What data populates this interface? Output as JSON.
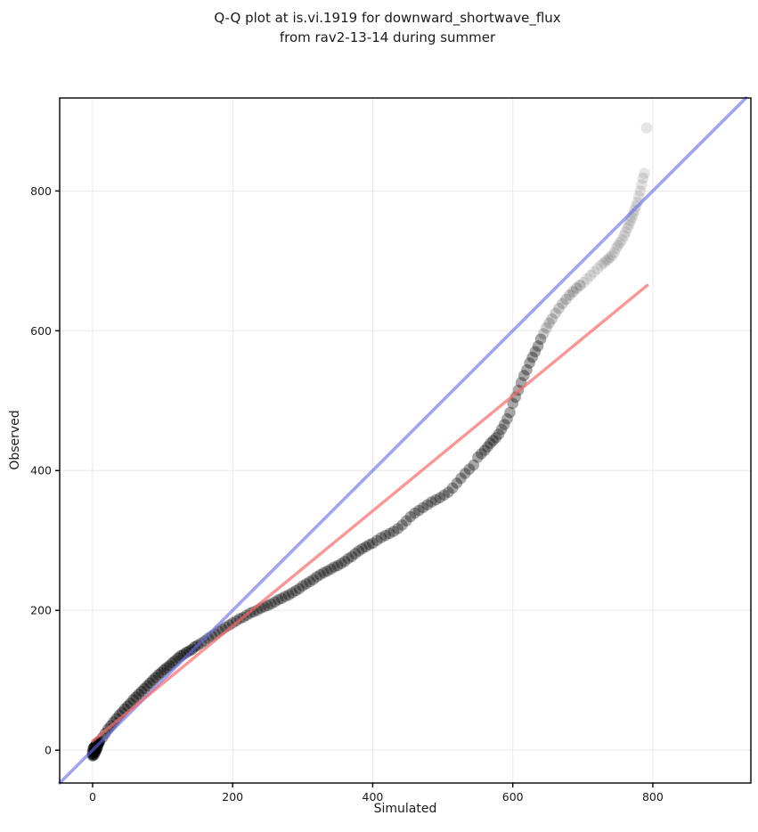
{
  "title": {
    "line1": "Q-Q plot at is.vi.1919 for downward_shortwave_flux",
    "line2": "from rav2-13-14 during summer"
  },
  "axes": {
    "xlabel": "Simulated",
    "ylabel": "Observed",
    "xticks": [
      0,
      200,
      400,
      600,
      800
    ],
    "yticks": [
      0,
      200,
      400,
      600,
      800
    ],
    "xlim": [
      -47,
      940
    ],
    "ylim": [
      -47,
      933
    ]
  },
  "colors": {
    "identity_line": "#6b6bec",
    "fit_line": "#fa6a6a",
    "marker": "#000000",
    "grid": "#e9e9e9",
    "spine": "#000000",
    "text": "#1a1a1a",
    "background": "#ffffff"
  },
  "style": {
    "marker_radius": 6.3,
    "marker_alpha": 0.1,
    "identity_line_width": 3.6,
    "identity_line_opacity": 0.62,
    "fit_line_width": 3.4,
    "fit_line_opacity": 0.7,
    "density_tiers": [
      {
        "max_x": 12,
        "draws": 6
      },
      {
        "max_x": 150,
        "draws": 5
      },
      {
        "max_x": 640,
        "draws": 4
      },
      {
        "max_x": 700,
        "draws": 2
      }
    ],
    "default_draws": 1
  },
  "chart_data": {
    "type": "scatter",
    "title": "Q-Q plot at is.vi.1919 for downward_shortwave_flux from rav2-13-14 during summer",
    "xlabel": "Simulated",
    "ylabel": "Observed",
    "xlim": [
      -47,
      940
    ],
    "ylim": [
      -47,
      933
    ],
    "grid": true,
    "legend": false,
    "identity_line": {
      "from": [
        -47,
        -47
      ],
      "to": [
        933,
        933
      ]
    },
    "fit_line": {
      "from": [
        0,
        13
      ],
      "to": [
        792,
        665
      ]
    },
    "points": [
      [
        0,
        -8
      ],
      [
        0,
        -6
      ],
      [
        0,
        -2
      ],
      [
        1,
        -5
      ],
      [
        1,
        2
      ],
      [
        2,
        -7
      ],
      [
        2,
        -3
      ],
      [
        2,
        4
      ],
      [
        3,
        -1
      ],
      [
        3,
        5
      ],
      [
        4,
        -3
      ],
      [
        4,
        6
      ],
      [
        5,
        0
      ],
      [
        5,
        3
      ],
      [
        6,
        2
      ],
      [
        6,
        9
      ],
      [
        7,
        5
      ],
      [
        8,
        8
      ],
      [
        8,
        10
      ],
      [
        9,
        11
      ],
      [
        10,
        12
      ],
      [
        14,
        18
      ],
      [
        18,
        24
      ],
      [
        22,
        30
      ],
      [
        26,
        35
      ],
      [
        30,
        40
      ],
      [
        34,
        45
      ],
      [
        38,
        50
      ],
      [
        42,
        54
      ],
      [
        46,
        59
      ],
      [
        50,
        63
      ],
      [
        54,
        67
      ],
      [
        58,
        72
      ],
      [
        62,
        76
      ],
      [
        66,
        80
      ],
      [
        70,
        84
      ],
      [
        74,
        88
      ],
      [
        78,
        92
      ],
      [
        82,
        96
      ],
      [
        86,
        100
      ],
      [
        90,
        104
      ],
      [
        94,
        108
      ],
      [
        98,
        111
      ],
      [
        102,
        115
      ],
      [
        106,
        118
      ],
      [
        110,
        121
      ],
      [
        114,
        125
      ],
      [
        118,
        128
      ],
      [
        122,
        132
      ],
      [
        126,
        135
      ],
      [
        130,
        137
      ],
      [
        134,
        140
      ],
      [
        138,
        142
      ],
      [
        142,
        144
      ],
      [
        146,
        148
      ],
      [
        150,
        150
      ],
      [
        155,
        153
      ],
      [
        160,
        156
      ],
      [
        165,
        160
      ],
      [
        170,
        163
      ],
      [
        175,
        166
      ],
      [
        180,
        170
      ],
      [
        185,
        173
      ],
      [
        190,
        176
      ],
      [
        195,
        179
      ],
      [
        200,
        182
      ],
      [
        205,
        185
      ],
      [
        210,
        188
      ],
      [
        215,
        190
      ],
      [
        220,
        193
      ],
      [
        225,
        196
      ],
      [
        230,
        198
      ],
      [
        235,
        200
      ],
      [
        240,
        203
      ],
      [
        245,
        205
      ],
      [
        250,
        207
      ],
      [
        255,
        209
      ],
      [
        260,
        212
      ],
      [
        265,
        215
      ],
      [
        270,
        217
      ],
      [
        275,
        220
      ],
      [
        280,
        222
      ],
      [
        285,
        225
      ],
      [
        290,
        228
      ],
      [
        295,
        231
      ],
      [
        300,
        235
      ],
      [
        305,
        238
      ],
      [
        310,
        241
      ],
      [
        315,
        244
      ],
      [
        320,
        248
      ],
      [
        325,
        251
      ],
      [
        330,
        254
      ],
      [
        335,
        256
      ],
      [
        340,
        259
      ],
      [
        345,
        262
      ],
      [
        350,
        264
      ],
      [
        355,
        267
      ],
      [
        360,
        270
      ],
      [
        365,
        274
      ],
      [
        370,
        277
      ],
      [
        375,
        281
      ],
      [
        380,
        285
      ],
      [
        385,
        288
      ],
      [
        390,
        291
      ],
      [
        395,
        294
      ],
      [
        400,
        296
      ],
      [
        406,
        300
      ],
      [
        412,
        304
      ],
      [
        418,
        307
      ],
      [
        424,
        310
      ],
      [
        430,
        313
      ],
      [
        436,
        317
      ],
      [
        442,
        322
      ],
      [
        448,
        328
      ],
      [
        454,
        334
      ],
      [
        460,
        339
      ],
      [
        466,
        343
      ],
      [
        472,
        347
      ],
      [
        478,
        351
      ],
      [
        484,
        355
      ],
      [
        490,
        358
      ],
      [
        496,
        361
      ],
      [
        502,
        365
      ],
      [
        508,
        369
      ],
      [
        514,
        375
      ],
      [
        520,
        382
      ],
      [
        526,
        389
      ],
      [
        532,
        396
      ],
      [
        538,
        402
      ],
      [
        544,
        408
      ],
      [
        550,
        419
      ],
      [
        555,
        424
      ],
      [
        560,
        429
      ],
      [
        564,
        434
      ],
      [
        568,
        439
      ],
      [
        572,
        443
      ],
      [
        576,
        447
      ],
      [
        580,
        452
      ],
      [
        584,
        459
      ],
      [
        588,
        466
      ],
      [
        592,
        474
      ],
      [
        596,
        483
      ],
      [
        600,
        496
      ],
      [
        604,
        505
      ],
      [
        608,
        515
      ],
      [
        612,
        526
      ],
      [
        616,
        536
      ],
      [
        620,
        544
      ],
      [
        624,
        554
      ],
      [
        628,
        562
      ],
      [
        632,
        570
      ],
      [
        636,
        578
      ],
      [
        640,
        588
      ],
      [
        644,
        596
      ],
      [
        648,
        604
      ],
      [
        652,
        611
      ],
      [
        656,
        617
      ],
      [
        661,
        625
      ],
      [
        666,
        632
      ],
      [
        671,
        639
      ],
      [
        676,
        645
      ],
      [
        681,
        651
      ],
      [
        686,
        656
      ],
      [
        691,
        661
      ],
      [
        696,
        665
      ],
      [
        701,
        669
      ],
      [
        706,
        674
      ],
      [
        711,
        679
      ],
      [
        716,
        684
      ],
      [
        721,
        689
      ],
      [
        726,
        694
      ],
      [
        730,
        697
      ],
      [
        733,
        700
      ],
      [
        736,
        702
      ],
      [
        739,
        705
      ],
      [
        742,
        708
      ],
      [
        745,
        712
      ],
      [
        748,
        718
      ],
      [
        750,
        722
      ],
      [
        753,
        726
      ],
      [
        756,
        730
      ],
      [
        759,
        736
      ],
      [
        761,
        741
      ],
      [
        764,
        747
      ],
      [
        766,
        752
      ],
      [
        768,
        757
      ],
      [
        770,
        762
      ],
      [
        772,
        767
      ],
      [
        774,
        772
      ],
      [
        776,
        778
      ],
      [
        778,
        784
      ],
      [
        780,
        792
      ],
      [
        782,
        800
      ],
      [
        784,
        809
      ],
      [
        786,
        818
      ],
      [
        788,
        825
      ],
      [
        791,
        890
      ]
    ]
  }
}
